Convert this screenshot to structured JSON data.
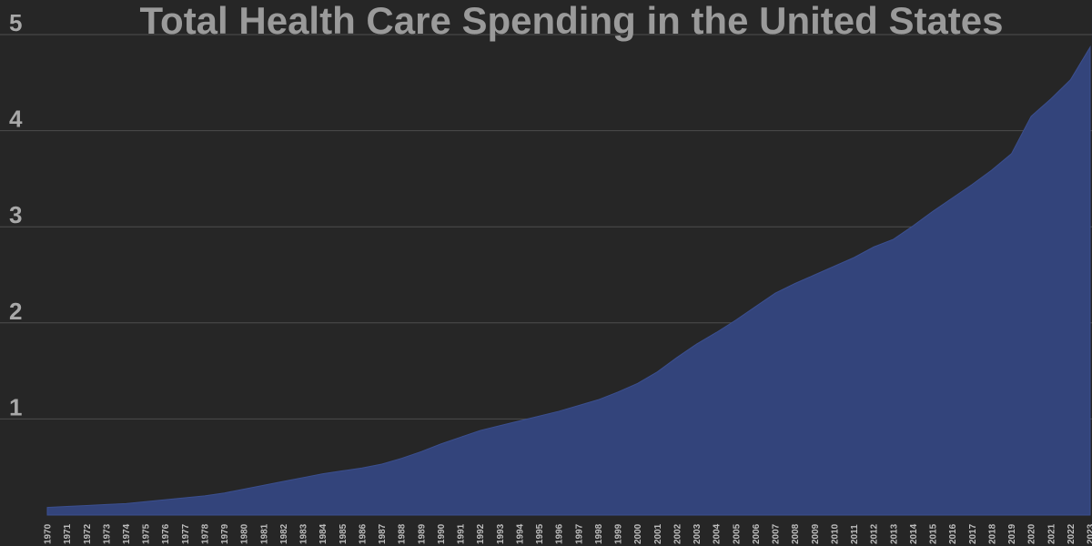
{
  "colors": {
    "background": "#262626",
    "area_fill": "#33447b",
    "area_stroke": "#3b4f8f",
    "gridline": "#4d4d4d",
    "title": "#9a9a9a",
    "tick": "#a8a8a8"
  },
  "chart_data": {
    "type": "area",
    "title": "Total Health Care Spending in the United States",
    "xlabel": "",
    "ylabel": "",
    "grid": true,
    "legend": "none",
    "ylim": [
      0,
      5
    ],
    "yticks": [
      "1",
      "2",
      "3",
      "4",
      "5"
    ],
    "x": [
      "1970",
      "1971",
      "1972",
      "1973",
      "1974",
      "1975",
      "1976",
      "1977",
      "1978",
      "1979",
      "1980",
      "1981",
      "1982",
      "1983",
      "1984",
      "1985",
      "1986",
      "1987",
      "1988",
      "1989",
      "1990",
      "1991",
      "1992",
      "1993",
      "1994",
      "1995",
      "1996",
      "1997",
      "1998",
      "1999",
      "2000",
      "2001",
      "2002",
      "2003",
      "2004",
      "2005",
      "2006",
      "2007",
      "2008",
      "2009",
      "2010",
      "2011",
      "2012",
      "2013",
      "2014",
      "2015",
      "2016",
      "2017",
      "2018",
      "2019",
      "2020",
      "2021",
      "2022",
      "2023"
    ],
    "values": [
      0.08,
      0.09,
      0.1,
      0.11,
      0.12,
      0.14,
      0.16,
      0.18,
      0.2,
      0.23,
      0.27,
      0.31,
      0.35,
      0.39,
      0.43,
      0.46,
      0.49,
      0.53,
      0.59,
      0.66,
      0.74,
      0.81,
      0.88,
      0.93,
      0.98,
      1.03,
      1.08,
      1.14,
      1.2,
      1.28,
      1.37,
      1.49,
      1.64,
      1.78,
      1.9,
      2.03,
      2.17,
      2.31,
      2.41,
      2.5,
      2.59,
      2.68,
      2.79,
      2.87,
      3.01,
      3.16,
      3.3,
      3.44,
      3.59,
      3.76,
      4.15,
      4.33,
      4.53,
      4.87
    ]
  }
}
